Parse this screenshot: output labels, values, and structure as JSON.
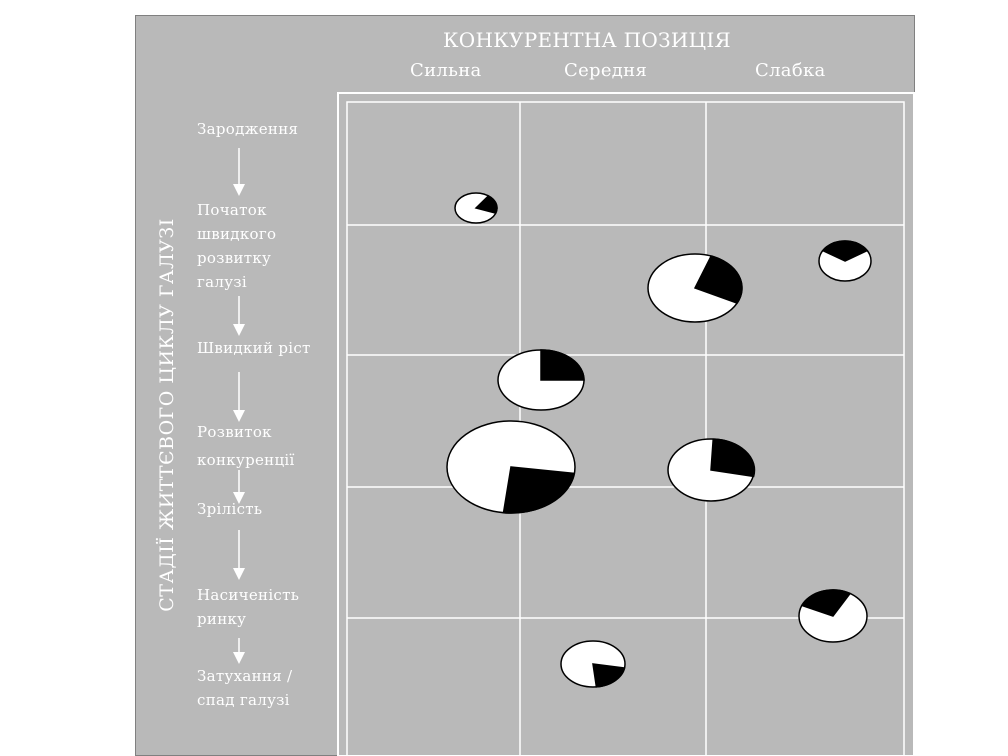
{
  "title": "КОНКУРЕНТНА ПОЗИЦІЯ",
  "columns": [
    "Сильна",
    "Середня",
    "Слабка"
  ],
  "vertical_axis_label": "СТАДІЇ ЖИТТЄВОГО ЦИКЛУ ГАЛУЗІ",
  "stages": [
    {
      "label": "Зародження"
    },
    {
      "label": "Початок швидкого розвитку галузі"
    },
    {
      "label": "Швидкий ріст"
    },
    {
      "label": "Розвиток конкуренції"
    },
    {
      "label": "Зрілість"
    },
    {
      "label": "Насиченість ринку"
    },
    {
      "label": "Затухання / спад галузі"
    }
  ],
  "colors": {
    "background": "#b9b9b9",
    "text": "#ffffff",
    "grid": "#ffffff",
    "slice": "#000000"
  }
}
